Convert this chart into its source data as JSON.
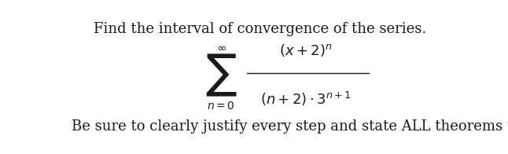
{
  "title": "Find the interval of convergence of the series.",
  "footer": "Be sure to clearly justify every step and state ALL theorems used.",
  "bg_color": "#ffffff",
  "text_color": "#1a1a1a",
  "title_fontsize": 13,
  "footer_fontsize": 13
}
